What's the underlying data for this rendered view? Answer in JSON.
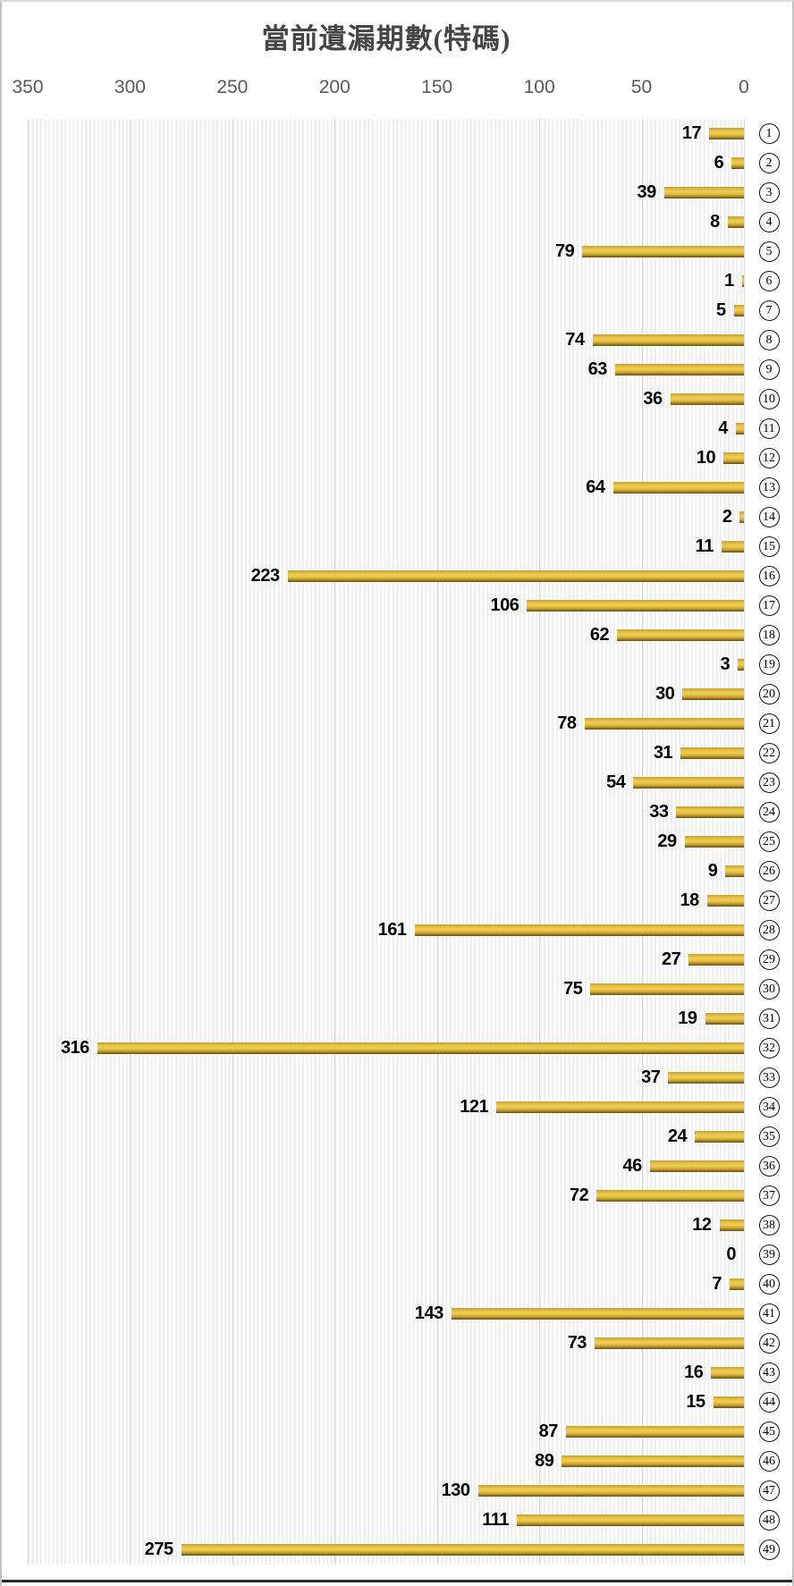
{
  "chart_data": {
    "type": "bar",
    "orientation": "horizontal",
    "title": "當前遺漏期數(特碼)",
    "categories": [
      1,
      2,
      3,
      4,
      5,
      6,
      7,
      8,
      9,
      10,
      11,
      12,
      13,
      14,
      15,
      16,
      17,
      18,
      19,
      20,
      21,
      22,
      23,
      24,
      25,
      26,
      27,
      28,
      29,
      30,
      31,
      32,
      33,
      34,
      35,
      36,
      37,
      38,
      39,
      40,
      41,
      42,
      43,
      44,
      45,
      46,
      47,
      48,
      49
    ],
    "values": [
      17,
      6,
      39,
      8,
      79,
      1,
      5,
      74,
      63,
      36,
      4,
      10,
      64,
      2,
      11,
      223,
      106,
      62,
      3,
      30,
      78,
      31,
      54,
      33,
      29,
      9,
      18,
      161,
      27,
      75,
      19,
      316,
      37,
      121,
      24,
      46,
      72,
      12,
      0,
      7,
      143,
      73,
      16,
      15,
      87,
      89,
      130,
      111,
      275
    ],
    "value_axis": {
      "position": "top",
      "direction": "right-to-left",
      "range": [
        0,
        350
      ],
      "ticks": [
        350,
        300,
        250,
        200,
        150,
        100,
        50,
        0
      ]
    },
    "category_axis": {
      "position": "right",
      "style": "circled-numbers"
    },
    "data_labels": true,
    "grid": true,
    "legend": "none",
    "colors": {
      "bar": "#d9b239",
      "bar_gradient_top": "#c7a02f",
      "bar_gradient_mid": "#f0cd52",
      "bar_gradient_bottom": "#634d11",
      "title_text": "#454545",
      "axis_text": "#595959",
      "data_label_text": "#000000",
      "gridline": "#d6d6d6",
      "plot_stripe": "#efefef",
      "bottom_border": "#2b2b2b"
    }
  }
}
